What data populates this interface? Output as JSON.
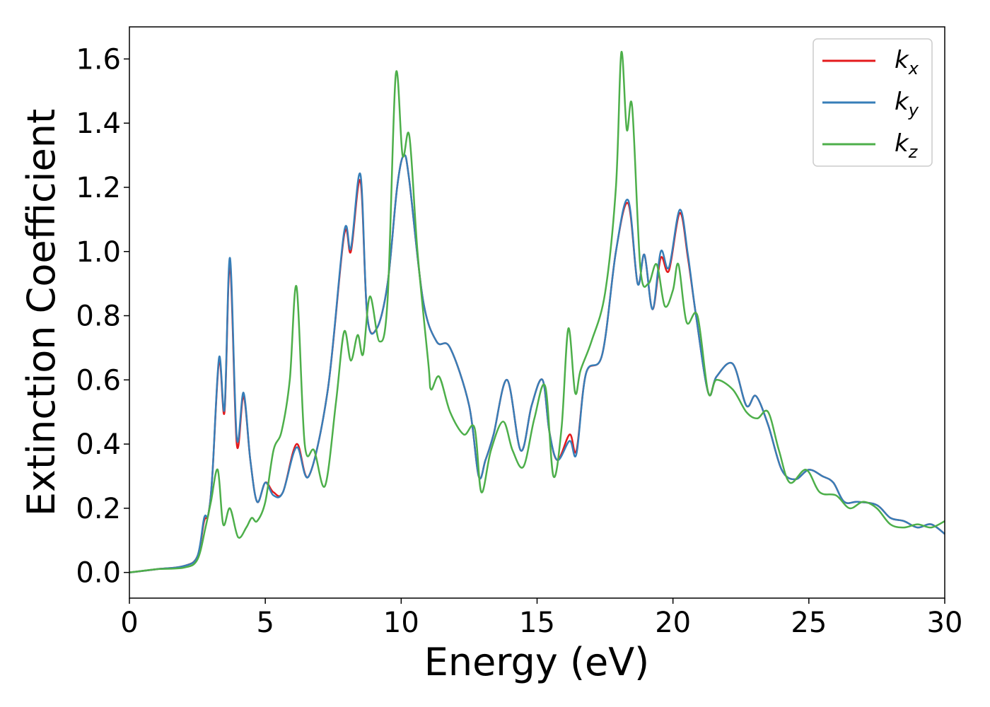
{
  "chart_data": {
    "type": "line",
    "title": "",
    "xlabel": "Energy (eV)",
    "ylabel": "Extinction Coefficient",
    "xlim": [
      0,
      30
    ],
    "ylim": [
      -0.08,
      1.7
    ],
    "xticks": [
      0,
      5,
      10,
      15,
      20,
      25,
      30
    ],
    "xtick_labels": [
      "0",
      "5",
      "10",
      "15",
      "20",
      "25",
      "30"
    ],
    "yticks": [
      0.0,
      0.2,
      0.4,
      0.6,
      0.8,
      1.0,
      1.2,
      1.4,
      1.6
    ],
    "ytick_labels": [
      "0.0",
      "0.2",
      "0.4",
      "0.6",
      "0.8",
      "1.0",
      "1.2",
      "1.4",
      "1.6"
    ],
    "grid": false,
    "legend_position": "top-right",
    "series": [
      {
        "name": "k",
        "subscript": "x",
        "color": "#e41a1c",
        "x": [
          0,
          1,
          2,
          2.5,
          2.75,
          2.9,
          3.05,
          3.3,
          3.5,
          3.7,
          3.95,
          4.2,
          4.45,
          4.7,
          5.0,
          5.3,
          5.65,
          6.15,
          6.6,
          7.3,
          7.9,
          8.15,
          8.5,
          8.75,
          9.1,
          9.5,
          9.85,
          10.1,
          10.3,
          10.8,
          11.3,
          11.8,
          12.5,
          12.85,
          13.1,
          13.4,
          13.9,
          14.4,
          14.8,
          15.2,
          15.45,
          15.75,
          16.2,
          16.45,
          16.8,
          17.4,
          17.9,
          18.35,
          18.7,
          18.95,
          19.25,
          19.55,
          19.85,
          20.25,
          20.55,
          20.85,
          21.3,
          21.6,
          22.2,
          22.7,
          23.05,
          23.5,
          24.0,
          24.5,
          25.0,
          25.5,
          25.9,
          26.3,
          26.8,
          27.5,
          28.0,
          28.5,
          29.0,
          29.5,
          30.0
        ],
        "y": [
          0.0,
          0.01,
          0.02,
          0.05,
          0.16,
          0.18,
          0.3,
          0.66,
          0.5,
          0.96,
          0.4,
          0.55,
          0.35,
          0.22,
          0.28,
          0.25,
          0.25,
          0.4,
          0.3,
          0.57,
          1.05,
          1.0,
          1.22,
          0.8,
          0.76,
          0.9,
          1.2,
          1.3,
          1.22,
          0.85,
          0.72,
          0.7,
          0.52,
          0.3,
          0.35,
          0.43,
          0.6,
          0.38,
          0.52,
          0.6,
          0.44,
          0.35,
          0.43,
          0.38,
          0.62,
          0.68,
          1.0,
          1.15,
          0.9,
          0.99,
          0.82,
          0.98,
          0.94,
          1.12,
          0.98,
          0.8,
          0.56,
          0.61,
          0.65,
          0.52,
          0.55,
          0.46,
          0.32,
          0.29,
          0.32,
          0.3,
          0.28,
          0.22,
          0.22,
          0.21,
          0.17,
          0.16,
          0.14,
          0.15,
          0.12
        ]
      },
      {
        "name": "k",
        "subscript": "y",
        "color": "#377eb8",
        "x": [
          0,
          1,
          2,
          2.5,
          2.75,
          2.9,
          3.05,
          3.3,
          3.5,
          3.7,
          3.95,
          4.2,
          4.45,
          4.7,
          5.0,
          5.3,
          5.65,
          6.15,
          6.6,
          7.3,
          7.9,
          8.15,
          8.5,
          8.75,
          9.1,
          9.5,
          9.85,
          10.1,
          10.3,
          10.8,
          11.3,
          11.8,
          12.5,
          12.85,
          13.1,
          13.4,
          13.9,
          14.4,
          14.8,
          15.2,
          15.45,
          15.75,
          16.2,
          16.45,
          16.8,
          17.4,
          17.9,
          18.35,
          18.7,
          18.95,
          19.25,
          19.55,
          19.85,
          20.25,
          20.55,
          20.85,
          21.3,
          21.6,
          22.2,
          22.7,
          23.05,
          23.5,
          24.0,
          24.5,
          25.0,
          25.5,
          25.9,
          26.3,
          26.8,
          27.5,
          28.0,
          28.5,
          29.0,
          29.5,
          30.0
        ],
        "y": [
          0.0,
          0.01,
          0.02,
          0.05,
          0.17,
          0.18,
          0.3,
          0.67,
          0.51,
          0.98,
          0.42,
          0.56,
          0.35,
          0.22,
          0.28,
          0.24,
          0.25,
          0.39,
          0.3,
          0.57,
          1.06,
          1.01,
          1.24,
          0.8,
          0.76,
          0.9,
          1.2,
          1.3,
          1.22,
          0.85,
          0.72,
          0.7,
          0.52,
          0.3,
          0.35,
          0.43,
          0.6,
          0.38,
          0.52,
          0.6,
          0.44,
          0.35,
          0.41,
          0.37,
          0.62,
          0.68,
          1.0,
          1.16,
          0.9,
          0.99,
          0.82,
          1.0,
          0.95,
          1.13,
          0.99,
          0.8,
          0.56,
          0.61,
          0.65,
          0.52,
          0.55,
          0.46,
          0.32,
          0.29,
          0.32,
          0.3,
          0.28,
          0.22,
          0.22,
          0.21,
          0.17,
          0.16,
          0.14,
          0.15,
          0.12
        ]
      },
      {
        "name": "k",
        "subscript": "z",
        "color": "#4daf4a",
        "x": [
          0,
          1,
          2,
          2.5,
          2.8,
          3.0,
          3.25,
          3.45,
          3.7,
          4.0,
          4.3,
          4.5,
          4.7,
          5.0,
          5.3,
          5.6,
          5.9,
          6.15,
          6.45,
          6.8,
          7.2,
          7.6,
          7.9,
          8.15,
          8.4,
          8.6,
          8.85,
          9.2,
          9.5,
          9.8,
          10.05,
          10.3,
          10.6,
          11.0,
          11.1,
          11.4,
          11.8,
          12.3,
          12.7,
          12.95,
          13.3,
          13.75,
          14.1,
          14.5,
          14.9,
          15.3,
          15.6,
          15.9,
          16.15,
          16.4,
          16.6,
          17.0,
          17.5,
          17.9,
          18.1,
          18.3,
          18.5,
          18.8,
          19.1,
          19.4,
          19.7,
          20.0,
          20.2,
          20.5,
          20.9,
          21.3,
          21.6,
          22.2,
          22.7,
          23.1,
          23.5,
          23.9,
          24.3,
          24.9,
          25.4,
          26.0,
          26.5,
          27.0,
          27.5,
          28.0,
          28.5,
          29.0,
          29.5,
          30.0
        ],
        "y": [
          0.0,
          0.01,
          0.015,
          0.04,
          0.14,
          0.22,
          0.32,
          0.15,
          0.2,
          0.11,
          0.14,
          0.17,
          0.16,
          0.22,
          0.38,
          0.44,
          0.6,
          0.89,
          0.4,
          0.38,
          0.27,
          0.53,
          0.75,
          0.66,
          0.74,
          0.68,
          0.86,
          0.72,
          0.85,
          1.55,
          1.3,
          1.36,
          1.0,
          0.65,
          0.57,
          0.61,
          0.5,
          0.43,
          0.45,
          0.25,
          0.38,
          0.47,
          0.38,
          0.33,
          0.48,
          0.58,
          0.3,
          0.45,
          0.76,
          0.56,
          0.63,
          0.72,
          0.87,
          1.2,
          1.62,
          1.38,
          1.45,
          0.95,
          0.9,
          0.96,
          0.83,
          0.88,
          0.96,
          0.78,
          0.8,
          0.56,
          0.6,
          0.57,
          0.5,
          0.48,
          0.5,
          0.38,
          0.28,
          0.32,
          0.25,
          0.24,
          0.2,
          0.22,
          0.2,
          0.15,
          0.14,
          0.15,
          0.14,
          0.16
        ]
      }
    ]
  }
}
